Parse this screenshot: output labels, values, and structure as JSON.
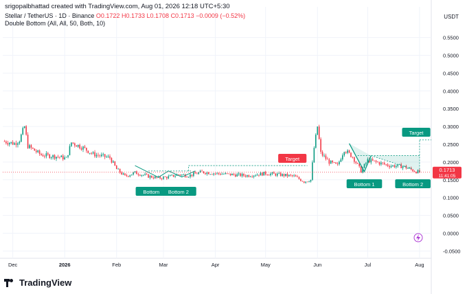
{
  "header": {
    "credit": "srigopalbhattad created with TradingView.com, Aug 01, 2026 12:18 UTC+5:30",
    "symbol": "Stellar / TetherUS · 1D · Binance",
    "open": "O0.1722",
    "high": "H0.1733",
    "low": "L0.1708",
    "close": "C0.1713",
    "change": "−0.0009 (−0.52%)",
    "indicator": "Double Bottom (All, All, 50, Both, 10)",
    "currency": "USDT"
  },
  "footer": {
    "brand": "TradingView"
  },
  "colors": {
    "up": "#089981",
    "down": "#f23645",
    "pattern": "#089981",
    "target_label": "#f23645",
    "price_label": "#f23645"
  },
  "chart_data": {
    "type": "candlestick",
    "title": "",
    "xlabel": "",
    "ylabel": "",
    "ylim": [
      -0.06,
      0.62
    ],
    "y_ticks": [
      "0.5500",
      "0.5000",
      "0.4500",
      "0.4000",
      "0.3500",
      "0.3000",
      "0.2500",
      "0.2000",
      "0.1500",
      "0.1000",
      "0.0500",
      "0.0000",
      "-0.0500"
    ],
    "x_ticks": [
      "Dec",
      "2026",
      "Feb",
      "Mar",
      "Apr",
      "May",
      "Jun",
      "Jul",
      "Aug"
    ],
    "last_price": "0.1713",
    "countdown": "11:41:05",
    "grid": true,
    "price_path": [
      [
        "2025-11-26",
        0.258
      ],
      [
        "2025-12-02",
        0.252
      ],
      [
        "2025-12-05",
        0.262
      ],
      [
        "2025-12-08",
        0.3
      ],
      [
        "2025-12-10",
        0.245
      ],
      [
        "2025-12-18",
        0.22
      ],
      [
        "2025-12-28",
        0.215
      ],
      [
        "2026-01-02",
        0.21
      ],
      [
        "2026-01-05",
        0.255
      ],
      [
        "2026-01-12",
        0.24
      ],
      [
        "2026-01-18",
        0.222
      ],
      [
        "2026-01-28",
        0.212
      ],
      [
        "2026-02-01",
        0.18
      ],
      [
        "2026-02-06",
        0.16
      ],
      [
        "2026-02-12",
        0.17
      ],
      [
        "2026-02-20",
        0.16
      ],
      [
        "2026-02-26",
        0.155
      ],
      [
        "2026-03-04",
        0.158
      ],
      [
        "2026-03-10",
        0.165
      ],
      [
        "2026-03-16",
        0.162
      ],
      [
        "2026-03-24",
        0.172
      ],
      [
        "2026-04-01",
        0.168
      ],
      [
        "2026-04-10",
        0.165
      ],
      [
        "2026-04-20",
        0.162
      ],
      [
        "2026-05-01",
        0.168
      ],
      [
        "2026-05-10",
        0.164
      ],
      [
        "2026-05-18",
        0.16
      ],
      [
        "2026-05-24",
        0.145
      ],
      [
        "2026-05-28",
        0.15
      ],
      [
        "2026-05-30",
        0.24
      ],
      [
        "2026-06-01",
        0.3
      ],
      [
        "2026-06-03",
        0.225
      ],
      [
        "2026-06-08",
        0.2
      ],
      [
        "2026-06-13",
        0.19
      ],
      [
        "2026-06-17",
        0.235
      ],
      [
        "2026-06-22",
        0.215
      ],
      [
        "2026-06-27",
        0.175
      ],
      [
        "2026-07-01",
        0.205
      ],
      [
        "2026-07-06",
        0.2
      ],
      [
        "2026-07-14",
        0.19
      ],
      [
        "2026-07-22",
        0.188
      ],
      [
        "2026-07-29",
        0.175
      ],
      [
        "2026-08-01",
        0.171
      ]
    ],
    "annotations": {
      "pattern_1": {
        "high": 0.19,
        "bottom_1": "Bottom 1",
        "bottom_2": "Bottom 2",
        "target": "Target",
        "target_price": 0.195
      },
      "pattern_2": {
        "high": 0.218,
        "bottom_1": "Bottom 1",
        "bottom_2": "Bottom 2",
        "target": "Target",
        "target_price": 0.262
      }
    }
  }
}
